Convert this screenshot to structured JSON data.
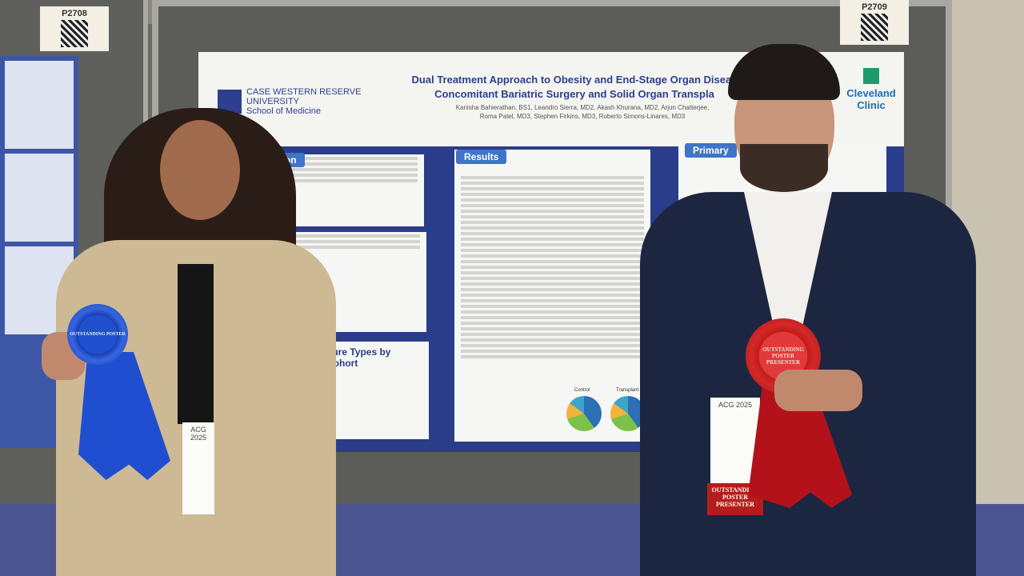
{
  "booth_tags": {
    "left": "P2708",
    "right": "P2709"
  },
  "poster": {
    "institution": [
      "CASE WESTERN RESERVE",
      "UNIVERSITY",
      "School of Medicine"
    ],
    "title_line1": "Dual Treatment Approach to Obesity and End-Stage Organ Diseas",
    "title_line2": "Concomitant Bariatric Surgery and Solid Organ Transpla",
    "authors_line1": "Kanisha Bahierathan, BS1, Leandro Sierra, MD2, Akash Khurana, MD2, Arjun Chatterjee,",
    "authors_line2": "Roma Patel, MD3, Stephen Firkins, MD3, Roberto Simons-Linares, MD3",
    "partner": "Cleveland Clinic",
    "sections": {
      "intro": "oduction",
      "results": "Results",
      "primary": "Primary",
      "chart": "dure Types by Cohort"
    },
    "pie_labels": [
      "Control",
      "Transplant"
    ]
  },
  "badges": {
    "left_event": "ACG 2025",
    "right_event": "ACG 2025"
  },
  "ribbons": {
    "blue": "OUTSTANDING POSTER",
    "red": "OUTSTANDING POSTER PRESENTER",
    "badge_ribbon": "OUTSTANDING POSTER PRESENTER"
  },
  "colors": {
    "poster_blue": "#2a3d8a",
    "blue_ribbon": "#1f4fd0",
    "red_ribbon": "#b3121a",
    "carpet": "#4a5490"
  }
}
